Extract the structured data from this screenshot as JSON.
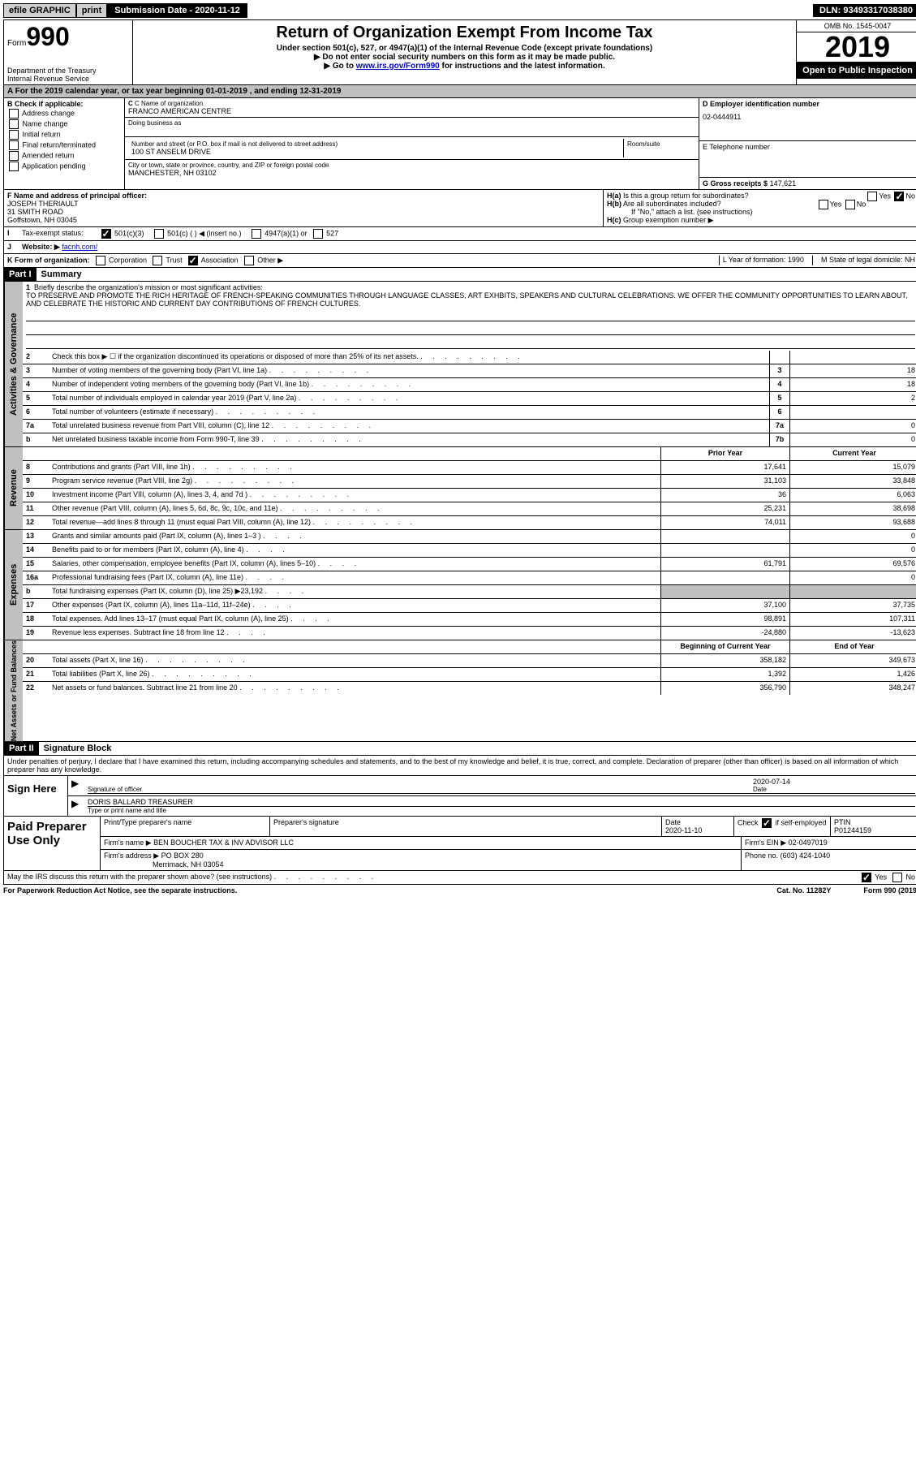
{
  "topbar": {
    "efile": "efile GRAPHIC",
    "print": "print",
    "subdate_label": "Submission Date - 2020-11-12",
    "dln": "DLN: 93493317038380"
  },
  "header": {
    "form_label": "Form",
    "form_num": "990",
    "dept1": "Department of the Treasury",
    "dept2": "Internal Revenue Service",
    "title": "Return of Organization Exempt From Income Tax",
    "subtitle": "Under section 501(c), 527, or 4947(a)(1) of the Internal Revenue Code (except private foundations)",
    "note1": "▶ Do not enter social security numbers on this form as it may be made public.",
    "note2_pre": "▶ Go to ",
    "note2_link": "www.irs.gov/Form990",
    "note2_post": " for instructions and the latest information.",
    "omb": "OMB No. 1545-0047",
    "year": "2019",
    "open": "Open to Public Inspection"
  },
  "period": "For the 2019 calendar year, or tax year beginning 01-01-2019   , and ending 12-31-2019",
  "boxB": {
    "header": "B Check if applicable:",
    "items": [
      "Address change",
      "Name change",
      "Initial return",
      "Final return/terminated",
      "Amended return",
      "Application pending"
    ]
  },
  "boxC": {
    "name_label": "C Name of organization",
    "name": "FRANCO AMERICAN CENTRE",
    "dba_label": "Doing business as",
    "addr_label": "Number and street (or P.O. box if mail is not delivered to street address)",
    "room_label": "Room/suite",
    "addr": "100 ST ANSELM DRIVE",
    "city_label": "City or town, state or province, country, and ZIP or foreign postal code",
    "city": "MANCHESTER, NH  03102"
  },
  "boxD": {
    "label": "D Employer identification number",
    "value": "02-0444911"
  },
  "boxE": {
    "label": "E Telephone number"
  },
  "boxG": {
    "label": "G Gross receipts $",
    "value": "147,621"
  },
  "boxF": {
    "label": "F  Name and address of principal officer:",
    "name": "JOSEPH THERIAULT",
    "addr1": "31 SMITH ROAD",
    "addr2": "Goffstown, NH  03045"
  },
  "boxH": {
    "a": "Is this a group return for subordinates?",
    "b": "Are all subordinates included?",
    "note": "If \"No,\" attach a list. (see instructions)",
    "c": "Group exemption number ▶",
    "ha_label": "H(a)",
    "hb_label": "H(b)",
    "hc_label": "H(c)",
    "yes": "Yes",
    "no": "No"
  },
  "boxI": {
    "label": "Tax-exempt status:",
    "o1": "501(c)(3)",
    "o2": "501(c) (  ) ◀ (insert no.)",
    "o3": "4947(a)(1) or",
    "o4": "527"
  },
  "boxJ": {
    "label": "Website: ▶",
    "value": "facnh.com/"
  },
  "boxK": {
    "label": "K Form of organization:",
    "o1": "Corporation",
    "o2": "Trust",
    "o3": "Association",
    "o4": "Other ▶",
    "l": "L Year of formation: 1990",
    "m": "M State of legal domicile: NH"
  },
  "part1": {
    "num": "Part I",
    "title": "Summary"
  },
  "mission": {
    "num": "1",
    "label": "Briefly describe the organization's mission or most significant activities:",
    "text": "TO PRESERVE AND PROMOTE THE RICH HERITAGE OF FRENCH-SPEAKING COMMUNITIES THROUGH LANGUAGE CLASSES, ART EXHBITS, SPEAKERS AND CULTURAL CELEBRATIONS. WE OFFER THE COMMUNITY OPPORTUNITIES TO LEARN ABOUT, AND CELEBRATE THE HISTORIC AND CURRENT DAY CONTRIBUTIONS OF FRENCH CULTURES."
  },
  "gov_lines": [
    {
      "num": "2",
      "desc": "Check this box ▶ ☐  if the organization discontinued its operations or disposed of more than 25% of its net assets.",
      "box": "",
      "val": ""
    },
    {
      "num": "3",
      "desc": "Number of voting members of the governing body (Part VI, line 1a)",
      "box": "3",
      "val": "18"
    },
    {
      "num": "4",
      "desc": "Number of independent voting members of the governing body (Part VI, line 1b)",
      "box": "4",
      "val": "18"
    },
    {
      "num": "5",
      "desc": "Total number of individuals employed in calendar year 2019 (Part V, line 2a)",
      "box": "5",
      "val": "2"
    },
    {
      "num": "6",
      "desc": "Total number of volunteers (estimate if necessary)",
      "box": "6",
      "val": ""
    },
    {
      "num": "7a",
      "desc": "Total unrelated business revenue from Part VIII, column (C), line 12",
      "box": "7a",
      "val": "0"
    },
    {
      "num": "b",
      "desc": "Net unrelated business taxable income from Form 990-T, line 39",
      "box": "7b",
      "val": "0"
    }
  ],
  "col_headers": {
    "prior": "Prior Year",
    "current": "Current Year"
  },
  "revenue": {
    "label": "Revenue",
    "lines": [
      {
        "num": "8",
        "desc": "Contributions and grants (Part VIII, line 1h)",
        "prior": "17,641",
        "curr": "15,079"
      },
      {
        "num": "9",
        "desc": "Program service revenue (Part VIII, line 2g)",
        "prior": "31,103",
        "curr": "33,848"
      },
      {
        "num": "10",
        "desc": "Investment income (Part VIII, column (A), lines 3, 4, and 7d )",
        "prior": "36",
        "curr": "6,063"
      },
      {
        "num": "11",
        "desc": "Other revenue (Part VIII, column (A), lines 5, 6d, 8c, 9c, 10c, and 11e)",
        "prior": "25,231",
        "curr": "38,698"
      },
      {
        "num": "12",
        "desc": "Total revenue—add lines 8 through 11 (must equal Part VIII, column (A), line 12)",
        "prior": "74,011",
        "curr": "93,688"
      }
    ]
  },
  "expenses": {
    "label": "Expenses",
    "lines": [
      {
        "num": "13",
        "desc": "Grants and similar amounts paid (Part IX, column (A), lines 1–3 )",
        "prior": "",
        "curr": "0"
      },
      {
        "num": "14",
        "desc": "Benefits paid to or for members (Part IX, column (A), line 4)",
        "prior": "",
        "curr": "0"
      },
      {
        "num": "15",
        "desc": "Salaries, other compensation, employee benefits (Part IX, column (A), lines 5–10)",
        "prior": "61,791",
        "curr": "69,576"
      },
      {
        "num": "16a",
        "desc": "Professional fundraising fees (Part IX, column (A), line 11e)",
        "prior": "",
        "curr": "0"
      },
      {
        "num": "b",
        "desc": "Total fundraising expenses (Part IX, column (D), line 25) ▶23,192",
        "prior": "shaded",
        "curr": "shaded"
      },
      {
        "num": "17",
        "desc": "Other expenses (Part IX, column (A), lines 11a–11d, 11f–24e)",
        "prior": "37,100",
        "curr": "37,735"
      },
      {
        "num": "18",
        "desc": "Total expenses. Add lines 13–17 (must equal Part IX, column (A), line 25)",
        "prior": "98,891",
        "curr": "107,311"
      },
      {
        "num": "19",
        "desc": "Revenue less expenses. Subtract line 18 from line 12",
        "prior": "-24,880",
        "curr": "-13,623"
      }
    ]
  },
  "netassets": {
    "label": "Net Assets or Fund Balances",
    "headers": {
      "prior": "Beginning of Current Year",
      "curr": "End of Year"
    },
    "lines": [
      {
        "num": "20",
        "desc": "Total assets (Part X, line 16)",
        "prior": "358,182",
        "curr": "349,673"
      },
      {
        "num": "21",
        "desc": "Total liabilities (Part X, line 26)",
        "prior": "1,392",
        "curr": "1,426"
      },
      {
        "num": "22",
        "desc": "Net assets or fund balances. Subtract line 21 from line 20",
        "prior": "356,790",
        "curr": "348,247"
      }
    ]
  },
  "part2": {
    "num": "Part II",
    "title": "Signature Block",
    "intro": "Under penalties of perjury, I declare that I have examined this return, including accompanying schedules and statements, and to the best of my knowledge and belief, it is true, correct, and complete. Declaration of preparer (other than officer) is based on all information of which preparer has any knowledge."
  },
  "sign": {
    "label": "Sign Here",
    "sig_officer": "Signature of officer",
    "date_label": "Date",
    "date": "2020-07-14",
    "name": "DORIS BALLARD  TREASURER",
    "name_label": "Type or print name and title"
  },
  "paid": {
    "label": "Paid Preparer Use Only",
    "h1": "Print/Type preparer's name",
    "h2": "Preparer's signature",
    "h3": "Date",
    "h3v": "2020-11-10",
    "h4": "Check ☑ if self-employed",
    "h5": "PTIN",
    "h5v": "P01244159",
    "firm_label": "Firm's name    ▶",
    "firm": "BEN BOUCHER TAX & INV ADVISOR LLC",
    "ein_label": "Firm's EIN ▶",
    "ein": "02-0497019",
    "addr_label": "Firm's address ▶",
    "addr1": "PO BOX 280",
    "addr2": "Merrimack, NH  03054",
    "phone_label": "Phone no.",
    "phone": "(603) 424-1040"
  },
  "footer": {
    "discuss": "May the IRS discuss this return with the preparer shown above? (see instructions)",
    "yes": "Yes",
    "no": "No",
    "paperwork": "For Paperwork Reduction Act Notice, see the separate instructions.",
    "cat": "Cat. No. 11282Y",
    "form": "Form 990 (2019)"
  },
  "side_labels": {
    "gov": "Activities & Governance"
  }
}
